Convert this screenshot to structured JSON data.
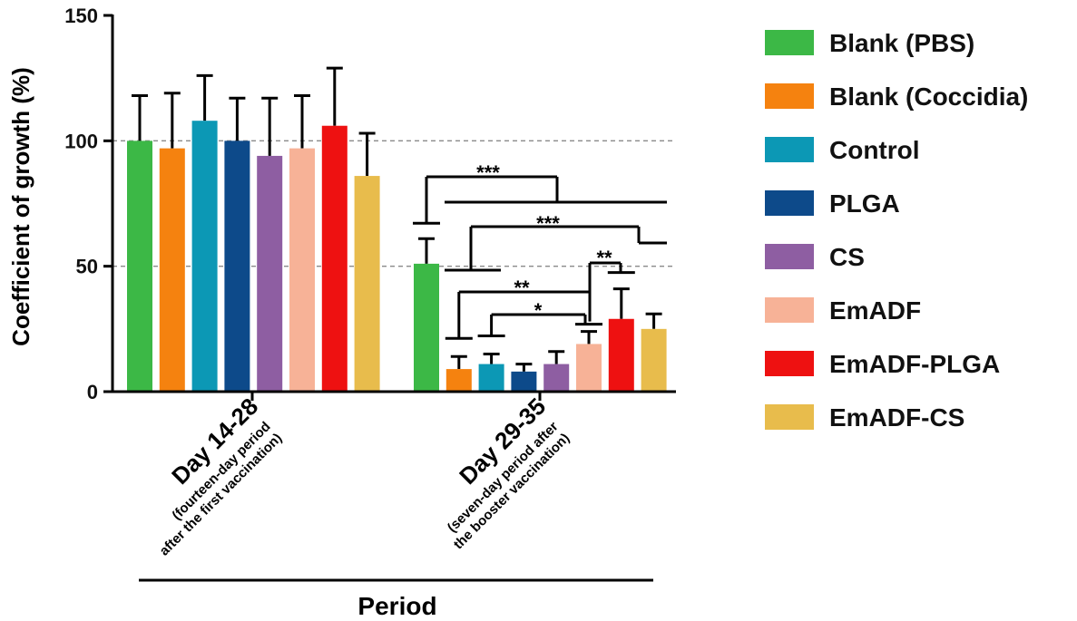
{
  "chart_data": {
    "type": "bar",
    "ylabel": "Coefficient of growth (%)",
    "xlabel": "Period",
    "ylim": [
      0,
      150
    ],
    "yticks": [
      0,
      50,
      100,
      150
    ],
    "reference_lines": [
      50,
      100
    ],
    "groups": [
      {
        "title": "Day 14-28",
        "subtitle_lines": [
          "(fourteen-day period",
          "after the first vaccination)"
        ]
      },
      {
        "title": "Day 29-35",
        "subtitle_lines": [
          "(seven-day period after",
          "the booster vaccination)"
        ]
      }
    ],
    "series": [
      {
        "name": "Blank (PBS)",
        "color": "#3cb846",
        "values": [
          100,
          51
        ],
        "errors": [
          18,
          10
        ]
      },
      {
        "name": "Blank (Coccidia)",
        "color": "#f5820f",
        "values": [
          97,
          9
        ],
        "errors": [
          22,
          5
        ]
      },
      {
        "name": "Control",
        "color": "#0c98b5",
        "values": [
          108,
          11
        ],
        "errors": [
          18,
          4
        ]
      },
      {
        "name": "PLGA",
        "color": "#0d4a8a",
        "values": [
          100,
          8
        ],
        "errors": [
          17,
          3
        ]
      },
      {
        "name": "CS",
        "color": "#8e5ea2",
        "values": [
          94,
          11
        ],
        "errors": [
          23,
          5
        ]
      },
      {
        "name": "EmADF",
        "color": "#f7b297",
        "values": [
          97,
          19
        ],
        "errors": [
          21,
          5
        ]
      },
      {
        "name": "EmADF-PLGA",
        "color": "#ee1111",
        "values": [
          106,
          29
        ],
        "errors": [
          23,
          12
        ]
      },
      {
        "name": "EmADF-CS",
        "color": "#e8bc4c",
        "values": [
          86,
          25
        ],
        "errors": [
          17,
          6
        ]
      }
    ],
    "significance": [
      "***",
      "***",
      "**",
      "*",
      "**"
    ]
  }
}
